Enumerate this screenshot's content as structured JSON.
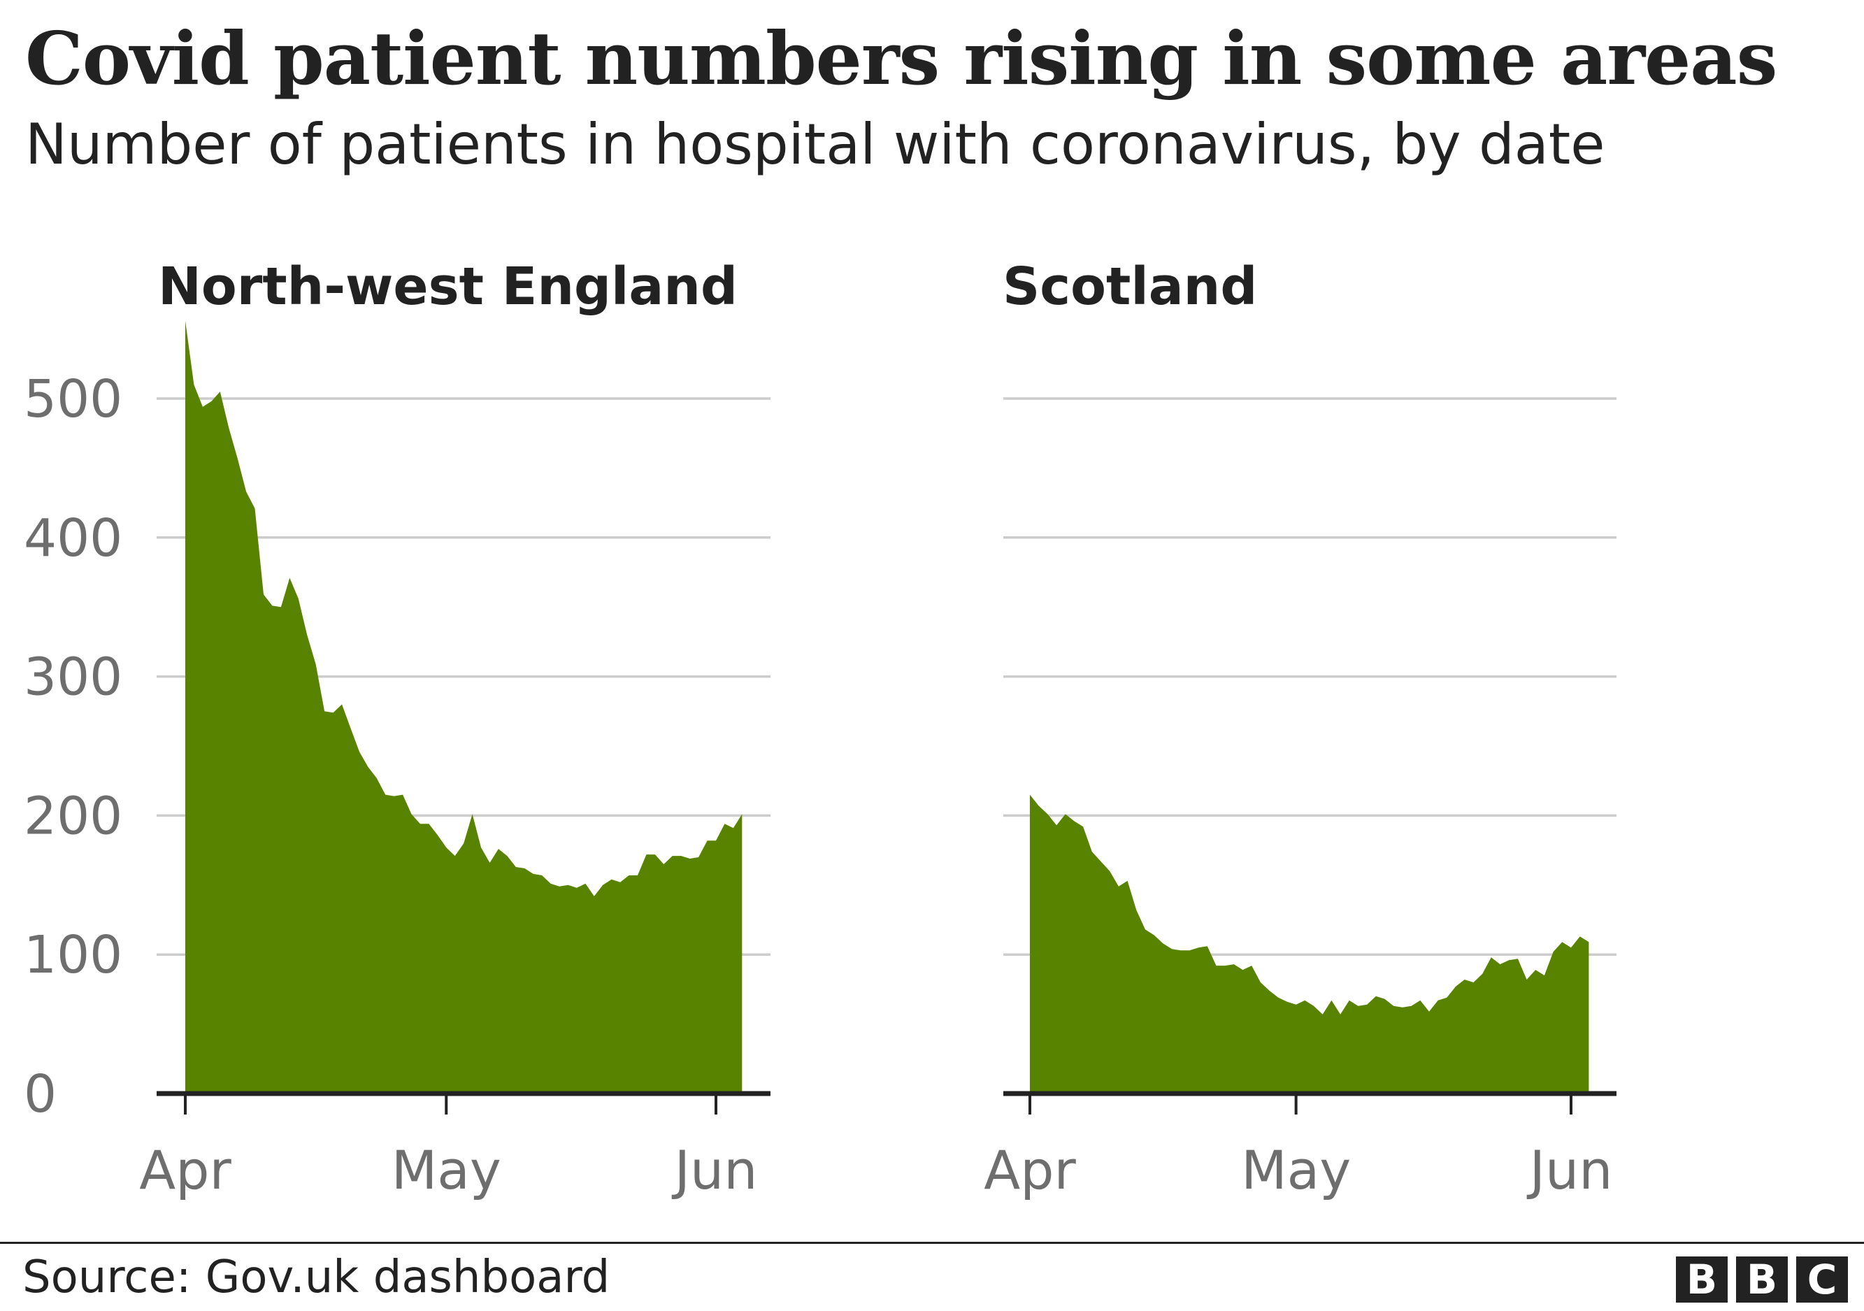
{
  "title": "Covid patient numbers rising in some areas",
  "subtitle": "Number of patients in hospital with coronavirus, by date",
  "source": "Source: Gov.uk dashboard",
  "logo": [
    "B",
    "B",
    "C"
  ],
  "colors": {
    "area": "#588300",
    "grid": "#cccccc",
    "axis": "#222222",
    "tick_label": "#6e6e6e"
  },
  "chart_data": [
    {
      "type": "area",
      "title": "North-west England",
      "x_start": "2020-04-01",
      "x_interval": "daily",
      "x_ticks": [
        "Apr",
        "May",
        "Jun"
      ],
      "y_ticks": [
        0,
        100,
        200,
        300,
        400,
        500
      ],
      "ylim": [
        0,
        560
      ],
      "grid": true,
      "values": [
        556,
        510,
        494,
        498,
        505,
        479,
        457,
        433,
        421,
        359,
        351,
        350,
        371,
        356,
        330,
        309,
        275,
        274,
        280,
        263,
        246,
        235,
        227,
        215,
        214,
        215,
        201,
        194,
        194,
        186,
        177,
        171,
        180,
        201,
        177,
        166,
        176,
        171,
        163,
        162,
        158,
        157,
        151,
        149,
        150,
        148,
        151,
        142,
        150,
        154,
        152,
        157,
        157,
        172,
        172,
        165,
        171,
        171,
        169,
        170,
        182,
        182,
        194,
        191,
        201
      ]
    },
    {
      "type": "area",
      "title": "Scotland",
      "x_start": "2020-04-01",
      "x_interval": "daily",
      "x_ticks": [
        "Apr",
        "May",
        "Jun"
      ],
      "y_ticks": [
        0,
        100,
        200,
        300,
        400,
        500
      ],
      "ylim": [
        0,
        560
      ],
      "grid": true,
      "values": [
        215,
        207,
        201,
        193,
        201,
        196,
        192,
        174,
        167,
        160,
        149,
        153,
        132,
        118,
        114,
        108,
        104,
        103,
        103,
        105,
        106,
        92,
        92,
        93,
        89,
        92,
        80,
        74,
        69,
        66,
        64,
        67,
        63,
        57,
        67,
        57,
        67,
        63,
        64,
        70,
        68,
        63,
        62,
        63,
        67,
        59,
        67,
        69,
        77,
        82,
        80,
        86,
        98,
        93,
        96,
        97,
        82,
        89,
        85,
        102,
        109,
        105,
        113,
        109
      ]
    }
  ]
}
